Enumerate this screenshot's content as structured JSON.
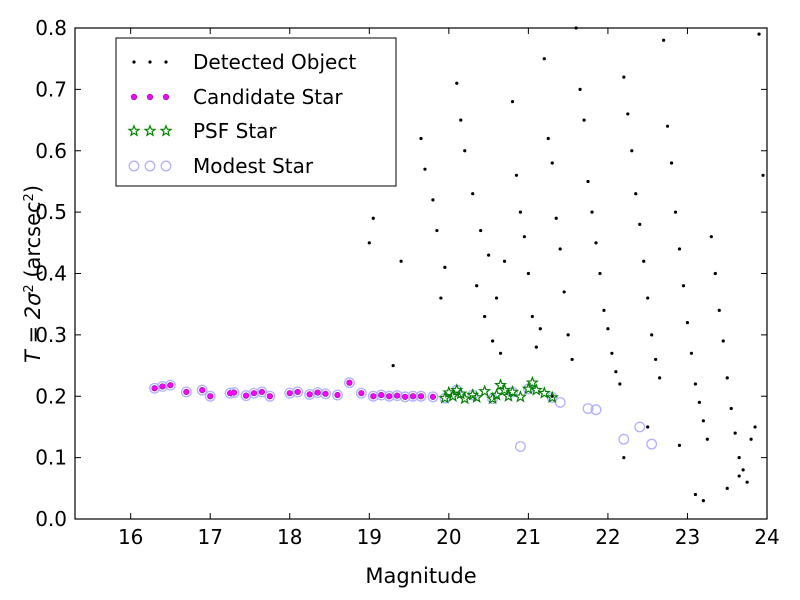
{
  "chart_data": {
    "type": "scatter",
    "xlabel": "Magnitude",
    "ylabel_main": "T = 2σ",
    "ylabel_sup": "2",
    "ylabel_unit": " (arcsec",
    "ylabel_unit_sup": "2",
    "ylabel_close": ")",
    "xlim": [
      15.3,
      24.0
    ],
    "ylim": [
      0.0,
      0.8
    ],
    "xticks": [
      16,
      17,
      18,
      19,
      20,
      21,
      22,
      23,
      24
    ],
    "yticks": [
      0.0,
      0.1,
      0.2,
      0.3,
      0.4,
      0.5,
      0.6,
      0.7,
      0.8
    ],
    "legend_position": "top-left",
    "legend": [
      {
        "name": "Detected Object",
        "color": "#000000",
        "marker": "dot"
      },
      {
        "name": "Candidate Star",
        "color": "#ff00ff",
        "marker": "circle"
      },
      {
        "name": "PSF Star",
        "color": "#008000",
        "marker": "star"
      },
      {
        "name": "Modest Star",
        "color": "#b0b0ff",
        "marker": "open-circle"
      }
    ],
    "series": [
      {
        "name": "Detected Object",
        "points": [
          [
            19.0,
            0.45
          ],
          [
            19.05,
            0.49
          ],
          [
            19.3,
            0.25
          ],
          [
            19.4,
            0.42
          ],
          [
            19.65,
            0.62
          ],
          [
            19.7,
            0.57
          ],
          [
            19.8,
            0.52
          ],
          [
            19.85,
            0.47
          ],
          [
            19.95,
            0.41
          ],
          [
            19.9,
            0.36
          ],
          [
            20.1,
            0.71
          ],
          [
            20.15,
            0.65
          ],
          [
            20.2,
            0.6
          ],
          [
            20.3,
            0.53
          ],
          [
            20.4,
            0.47
          ],
          [
            20.5,
            0.43
          ],
          [
            20.35,
            0.38
          ],
          [
            20.45,
            0.33
          ],
          [
            20.55,
            0.29
          ],
          [
            20.6,
            0.36
          ],
          [
            20.65,
            0.27
          ],
          [
            20.7,
            0.42
          ],
          [
            20.8,
            0.68
          ],
          [
            20.85,
            0.56
          ],
          [
            20.9,
            0.5
          ],
          [
            20.95,
            0.46
          ],
          [
            21.0,
            0.4
          ],
          [
            21.05,
            0.33
          ],
          [
            21.1,
            0.28
          ],
          [
            21.15,
            0.31
          ],
          [
            21.2,
            0.75
          ],
          [
            21.25,
            0.62
          ],
          [
            21.3,
            0.58
          ],
          [
            21.35,
            0.49
          ],
          [
            21.4,
            0.44
          ],
          [
            21.45,
            0.37
          ],
          [
            21.5,
            0.3
          ],
          [
            21.55,
            0.26
          ],
          [
            21.6,
            0.8
          ],
          [
            21.65,
            0.7
          ],
          [
            21.7,
            0.65
          ],
          [
            21.75,
            0.55
          ],
          [
            21.8,
            0.5
          ],
          [
            21.85,
            0.45
          ],
          [
            21.9,
            0.4
          ],
          [
            21.95,
            0.34
          ],
          [
            22.0,
            0.31
          ],
          [
            22.05,
            0.27
          ],
          [
            22.1,
            0.24
          ],
          [
            22.15,
            0.22
          ],
          [
            22.2,
            0.72
          ],
          [
            22.25,
            0.66
          ],
          [
            22.3,
            0.6
          ],
          [
            22.35,
            0.53
          ],
          [
            22.4,
            0.48
          ],
          [
            22.45,
            0.42
          ],
          [
            22.5,
            0.36
          ],
          [
            22.55,
            0.3
          ],
          [
            22.6,
            0.26
          ],
          [
            22.65,
            0.23
          ],
          [
            22.7,
            0.78
          ],
          [
            22.75,
            0.64
          ],
          [
            22.8,
            0.58
          ],
          [
            22.85,
            0.5
          ],
          [
            22.9,
            0.44
          ],
          [
            22.95,
            0.38
          ],
          [
            23.0,
            0.32
          ],
          [
            23.05,
            0.27
          ],
          [
            23.1,
            0.22
          ],
          [
            23.15,
            0.19
          ],
          [
            23.2,
            0.16
          ],
          [
            23.25,
            0.13
          ],
          [
            23.3,
            0.46
          ],
          [
            23.35,
            0.4
          ],
          [
            23.4,
            0.34
          ],
          [
            23.45,
            0.29
          ],
          [
            23.5,
            0.23
          ],
          [
            23.55,
            0.18
          ],
          [
            23.6,
            0.14
          ],
          [
            23.65,
            0.1
          ],
          [
            23.7,
            0.08
          ],
          [
            23.75,
            0.06
          ],
          [
            23.8,
            0.13
          ],
          [
            23.85,
            0.15
          ],
          [
            23.9,
            0.79
          ],
          [
            23.95,
            0.56
          ],
          [
            23.1,
            0.04
          ],
          [
            23.2,
            0.03
          ],
          [
            23.5,
            0.05
          ],
          [
            23.65,
            0.07
          ],
          [
            22.9,
            0.12
          ],
          [
            22.5,
            0.15
          ],
          [
            22.2,
            0.1
          ],
          [
            21.3,
            0.2
          ]
        ]
      },
      {
        "name": "Candidate Star",
        "points": [
          [
            16.3,
            0.213
          ],
          [
            16.4,
            0.216
          ],
          [
            16.5,
            0.218
          ],
          [
            16.7,
            0.207
          ],
          [
            16.9,
            0.21
          ],
          [
            17.0,
            0.2
          ],
          [
            17.25,
            0.205
          ],
          [
            17.3,
            0.206
          ],
          [
            17.45,
            0.201
          ],
          [
            17.55,
            0.205
          ],
          [
            17.65,
            0.207
          ],
          [
            17.75,
            0.2
          ],
          [
            18.0,
            0.205
          ],
          [
            18.1,
            0.207
          ],
          [
            18.25,
            0.203
          ],
          [
            18.35,
            0.206
          ],
          [
            18.45,
            0.204
          ],
          [
            18.6,
            0.202
          ],
          [
            18.75,
            0.222
          ],
          [
            18.9,
            0.205
          ],
          [
            19.05,
            0.2
          ],
          [
            19.15,
            0.202
          ],
          [
            19.25,
            0.2
          ],
          [
            19.35,
            0.201
          ],
          [
            19.45,
            0.199
          ],
          [
            19.55,
            0.2
          ],
          [
            19.65,
            0.2
          ],
          [
            19.8,
            0.199
          ]
        ]
      },
      {
        "name": "PSF Star",
        "points": [
          [
            19.95,
            0.197
          ],
          [
            20.0,
            0.206
          ],
          [
            20.05,
            0.2
          ],
          [
            20.1,
            0.21
          ],
          [
            20.15,
            0.204
          ],
          [
            20.2,
            0.196
          ],
          [
            20.3,
            0.202
          ],
          [
            20.35,
            0.198
          ],
          [
            20.45,
            0.208
          ],
          [
            20.55,
            0.196
          ],
          [
            20.6,
            0.202
          ],
          [
            20.65,
            0.218
          ],
          [
            20.7,
            0.21
          ],
          [
            20.75,
            0.2
          ],
          [
            20.8,
            0.207
          ],
          [
            20.9,
            0.199
          ],
          [
            21.0,
            0.212
          ],
          [
            21.05,
            0.222
          ],
          [
            21.1,
            0.21
          ],
          [
            21.2,
            0.205
          ],
          [
            21.3,
            0.198
          ]
        ]
      },
      {
        "name": "Modest Star",
        "points": [
          [
            16.3,
            0.213
          ],
          [
            16.4,
            0.216
          ],
          [
            16.5,
            0.218
          ],
          [
            16.7,
            0.207
          ],
          [
            16.9,
            0.21
          ],
          [
            17.0,
            0.2
          ],
          [
            17.25,
            0.205
          ],
          [
            17.3,
            0.206
          ],
          [
            17.45,
            0.201
          ],
          [
            17.55,
            0.205
          ],
          [
            17.65,
            0.207
          ],
          [
            17.75,
            0.2
          ],
          [
            18.0,
            0.205
          ],
          [
            18.1,
            0.207
          ],
          [
            18.25,
            0.203
          ],
          [
            18.35,
            0.206
          ],
          [
            18.45,
            0.204
          ],
          [
            18.6,
            0.202
          ],
          [
            18.75,
            0.222
          ],
          [
            18.9,
            0.205
          ],
          [
            19.05,
            0.2
          ],
          [
            19.15,
            0.202
          ],
          [
            19.25,
            0.2
          ],
          [
            19.35,
            0.201
          ],
          [
            19.45,
            0.199
          ],
          [
            19.55,
            0.2
          ],
          [
            19.65,
            0.2
          ],
          [
            19.8,
            0.199
          ],
          [
            19.95,
            0.197
          ],
          [
            20.1,
            0.21
          ],
          [
            20.3,
            0.202
          ],
          [
            20.55,
            0.196
          ],
          [
            20.8,
            0.207
          ],
          [
            21.0,
            0.212
          ],
          [
            21.3,
            0.198
          ],
          [
            21.4,
            0.19
          ],
          [
            21.75,
            0.18
          ],
          [
            21.85,
            0.178
          ],
          [
            20.9,
            0.118
          ],
          [
            22.2,
            0.13
          ],
          [
            22.4,
            0.15
          ],
          [
            22.55,
            0.122
          ]
        ]
      }
    ]
  }
}
